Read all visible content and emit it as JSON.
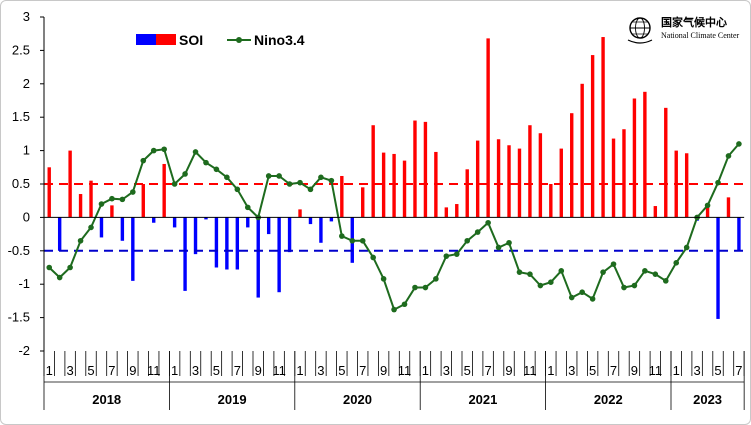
{
  "logo": {
    "name_cn": "国家气候中心",
    "name_en": "National Climate Center",
    "icon": "wmo-globe-icon"
  },
  "chart_data": {
    "type": "bar",
    "y_axis": {
      "ylim": [
        -2,
        3
      ],
      "ticks": [
        "-2",
        "-1.5",
        "-1",
        "-0.5",
        "0",
        "0.5",
        "1",
        "1.5",
        "2",
        "2.5",
        "3"
      ]
    },
    "month_labels": [
      "1",
      "3",
      "5",
      "7",
      "9",
      "11",
      "1",
      "3",
      "5",
      "7",
      "9",
      "11",
      "1",
      "3",
      "5",
      "7",
      "9",
      "11",
      "1",
      "3",
      "5",
      "7",
      "9",
      "11",
      "1",
      "3",
      "5",
      "7",
      "9",
      "11",
      "1",
      "3",
      "5",
      "7"
    ],
    "years": [
      "2018",
      "2019",
      "2020",
      "2021",
      "2022",
      "2023"
    ],
    "months_per_year": [
      12,
      12,
      12,
      12,
      12,
      7
    ],
    "reference_lines": [
      0.5,
      -0.5
    ],
    "legend": [
      "SOI",
      "Nino3.4"
    ],
    "colors": {
      "soi_positive": "#ff0000",
      "soi_negative": "#0000ff",
      "nino": "#1e6b1e",
      "ref_positive": "#ff0000",
      "ref_negative": "#0000cc"
    },
    "series": [
      {
        "name": "SOI",
        "kind": "bar",
        "values": [
          0.75,
          -0.5,
          1.0,
          0.35,
          0.55,
          -0.3,
          0.18,
          -0.35,
          -0.95,
          0.5,
          -0.08,
          0.8,
          -0.15,
          -1.1,
          -0.55,
          -0.03,
          -0.75,
          -0.78,
          -0.78,
          -0.15,
          -1.2,
          -0.25,
          -1.12,
          -0.52,
          0.12,
          -0.1,
          -0.38,
          -0.06,
          0.62,
          -0.68,
          0.45,
          1.38,
          0.97,
          0.95,
          0.85,
          1.45,
          1.43,
          0.98,
          0.15,
          0.2,
          0.72,
          1.15,
          2.68,
          1.17,
          1.08,
          1.03,
          1.38,
          1.26,
          0.5,
          1.03,
          1.56,
          2.0,
          2.43,
          2.7,
          1.18,
          1.32,
          1.78,
          1.88,
          0.17,
          1.64,
          1.0,
          0.96,
          -0.05,
          0.2,
          -1.52,
          0.3,
          -0.5
        ]
      },
      {
        "name": "Nino3.4",
        "kind": "line",
        "values": [
          -0.75,
          -0.9,
          -0.75,
          -0.35,
          -0.15,
          0.2,
          0.28,
          0.27,
          0.38,
          0.85,
          1.0,
          1.02,
          0.5,
          0.65,
          0.98,
          0.82,
          0.72,
          0.6,
          0.42,
          0.15,
          0.0,
          0.62,
          0.62,
          0.5,
          0.52,
          0.42,
          0.6,
          0.55,
          -0.28,
          -0.35,
          -0.35,
          -0.6,
          -0.92,
          -1.38,
          -1.3,
          -1.05,
          -1.05,
          -0.92,
          -0.58,
          -0.55,
          -0.35,
          -0.22,
          -0.08,
          -0.45,
          -0.38,
          -0.82,
          -0.85,
          -1.02,
          -0.97,
          -0.8,
          -1.2,
          -1.12,
          -1.22,
          -0.82,
          -0.7,
          -1.05,
          -1.02,
          -0.8,
          -0.85,
          -0.95,
          -0.68,
          -0.45,
          0.0,
          0.18,
          0.52,
          0.92,
          1.1
        ]
      }
    ]
  }
}
